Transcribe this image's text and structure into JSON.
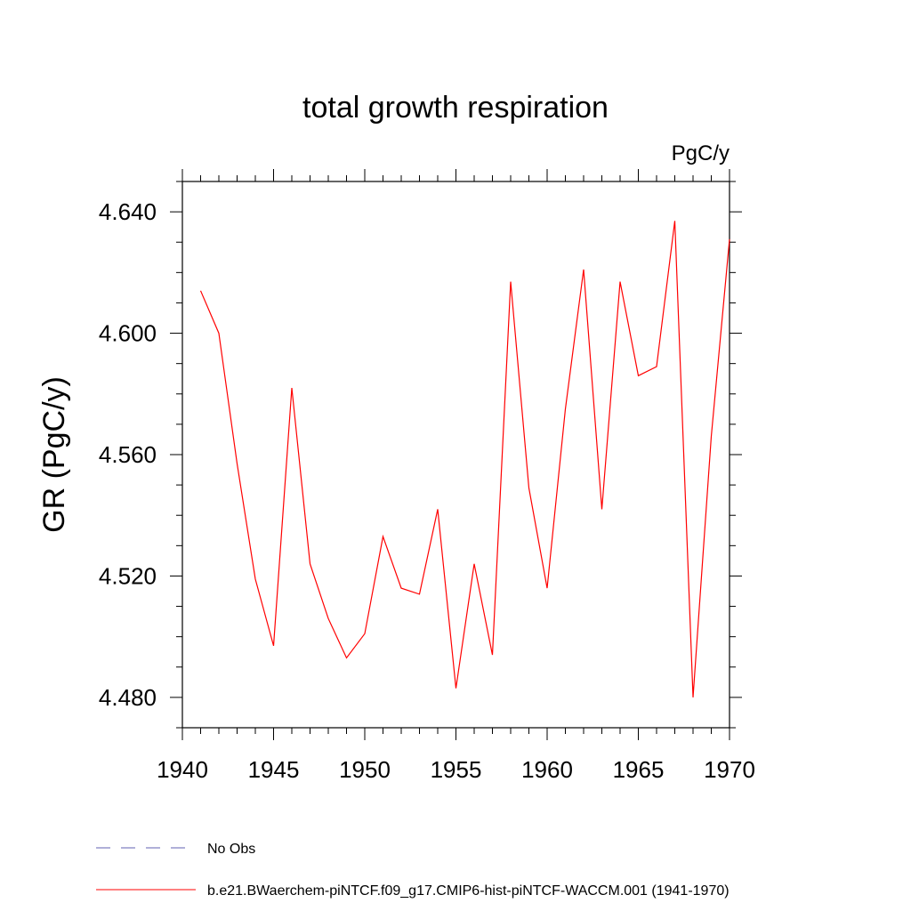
{
  "chart_data": {
    "type": "line",
    "title": "total growth respiration",
    "units_label": "PgC/y",
    "ylabel": "GR  (PgC/y)",
    "xlabel": "",
    "xlim": [
      1940,
      1970
    ],
    "ylim": [
      4.47,
      4.65
    ],
    "xticks": [
      1940,
      1945,
      1950,
      1955,
      1960,
      1965,
      1970
    ],
    "yticks": [
      4.48,
      4.52,
      4.56,
      4.6,
      4.64
    ],
    "ytick_labels": [
      "4.480",
      "4.520",
      "4.560",
      "4.600",
      "4.640"
    ],
    "y_minor_step": 0.01,
    "x_minor_step": 1,
    "grid": false,
    "legend_placement": "bottom-left",
    "series": [
      {
        "name": "b.e21.BWaerchem-piNTCF.f09_g17.CMIP6-hist-piNTCF-WACCM.001 (1941-1970)",
        "color": "#ff0000",
        "style": "solid",
        "x": [
          1941,
          1942,
          1943,
          1944,
          1945,
          1946,
          1947,
          1948,
          1949,
          1950,
          1951,
          1952,
          1953,
          1954,
          1955,
          1956,
          1957,
          1958,
          1959,
          1960,
          1961,
          1962,
          1963,
          1964,
          1965,
          1966,
          1967,
          1968,
          1969,
          1970
        ],
        "values": [
          4.614,
          4.6,
          4.557,
          4.519,
          4.497,
          4.582,
          4.524,
          4.506,
          4.493,
          4.501,
          4.533,
          4.516,
          4.514,
          4.542,
          4.483,
          4.524,
          4.494,
          4.617,
          4.549,
          4.516,
          4.575,
          4.621,
          4.542,
          4.617,
          4.586,
          4.589,
          4.637,
          4.48,
          4.566,
          4.631
        ]
      }
    ],
    "legend": [
      {
        "label": "No Obs",
        "color": "#6060b0",
        "style": "dashed"
      },
      {
        "label": "b.e21.BWaerchem-piNTCF.f09_g17.CMIP6-hist-piNTCF-WACCM.001 (1941-1970)",
        "color": "#ff0000",
        "style": "solid"
      }
    ]
  }
}
